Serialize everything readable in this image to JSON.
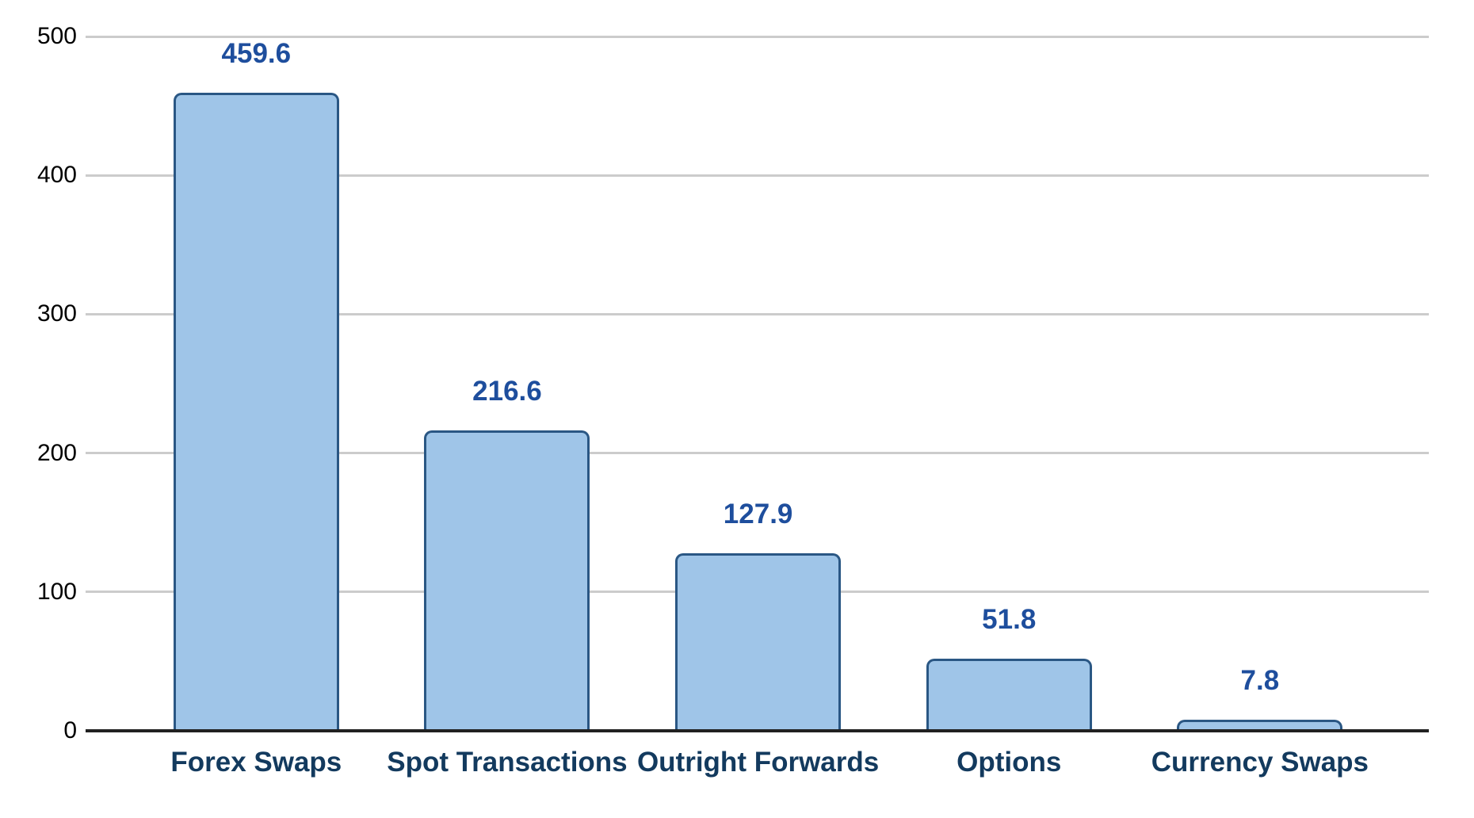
{
  "chart_data": {
    "type": "bar",
    "categories": [
      "Forex Swaps",
      "Spot Transactions",
      "Outright Forwards",
      "Options",
      "Currency Swaps"
    ],
    "values": [
      459.6,
      216.6,
      127.9,
      51.8,
      7.8
    ],
    "value_labels": [
      "459.6",
      "216.6",
      "127.9",
      "51.8",
      "7.8"
    ],
    "title": "",
    "xlabel": "",
    "ylabel": "",
    "ylim": [
      0,
      500
    ],
    "yticks": [
      0,
      100,
      200,
      300,
      400,
      500
    ],
    "grid": true,
    "legend": false,
    "colors": {
      "background": "#ffffff",
      "bar_fill": "#9fc5e8",
      "bar_border": "#2a5784",
      "value_label": "#1e4e9d",
      "category_label": "#133a5e",
      "gridline": "#cccccc",
      "axis_line": "#212121",
      "tick_label": "#000000"
    }
  }
}
